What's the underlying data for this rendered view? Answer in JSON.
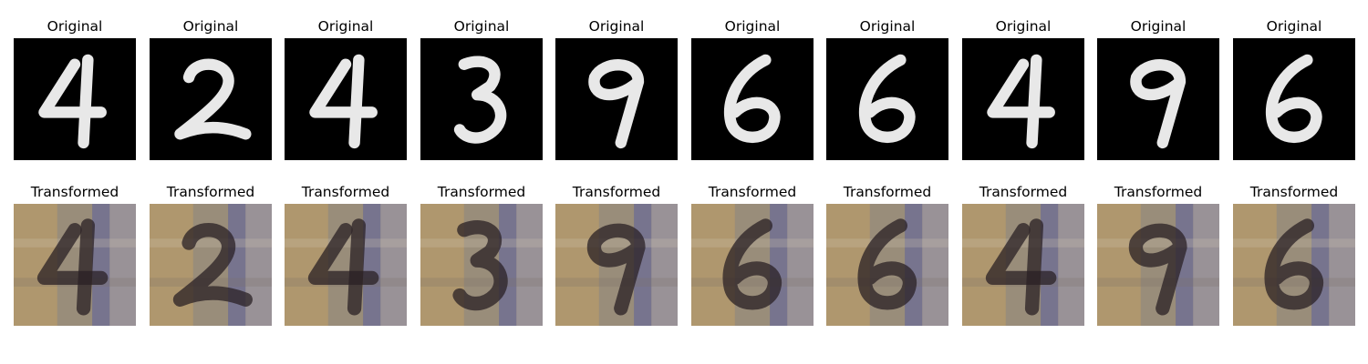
{
  "panels": {
    "original_title": "Original",
    "transformed_title": "Transformed",
    "pairs": [
      {
        "digit": "4"
      },
      {
        "digit": "2"
      },
      {
        "digit": "4"
      },
      {
        "digit": "3"
      },
      {
        "digit": "9"
      },
      {
        "digit": "6"
      },
      {
        "digit": "6"
      },
      {
        "digit": "4"
      },
      {
        "digit": "9"
      },
      {
        "digit": "6"
      }
    ]
  },
  "colors": {
    "original_background": "#000000",
    "original_stroke": "#e8e8e8",
    "transformed_background": "#8f8578",
    "transformed_warm": "#b59a6c",
    "transformed_cool": "#6f6f96",
    "transformed_stroke": "#2a2024"
  }
}
